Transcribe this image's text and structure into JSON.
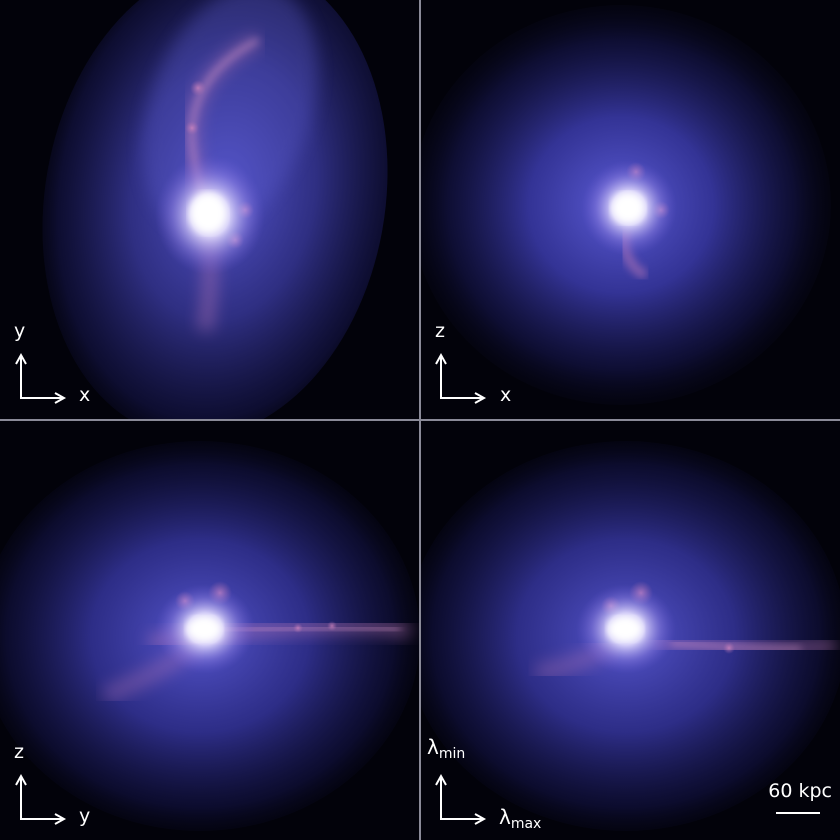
{
  "panels": [
    {
      "id": "xy-projection",
      "axis_vertical": "y",
      "axis_horizontal": "x"
    },
    {
      "id": "xz-projection",
      "axis_vertical": "z",
      "axis_horizontal": "x"
    },
    {
      "id": "yz-projection",
      "axis_vertical": "z",
      "axis_horizontal": "y"
    },
    {
      "id": "eigen-projection",
      "axis_vertical_symbol": "λ",
      "axis_vertical_sub": "min",
      "axis_horizontal_symbol": "λ",
      "axis_horizontal_sub": "max"
    }
  ],
  "scalebar": {
    "label": "60 kpc"
  },
  "colors": {
    "background": "#000000",
    "halo_blue": "#3a3aa8",
    "core_white": "#ffffff",
    "filament_pink": "#c070b0",
    "divider": "#8a8a98",
    "axis_text": "#ffffff"
  }
}
